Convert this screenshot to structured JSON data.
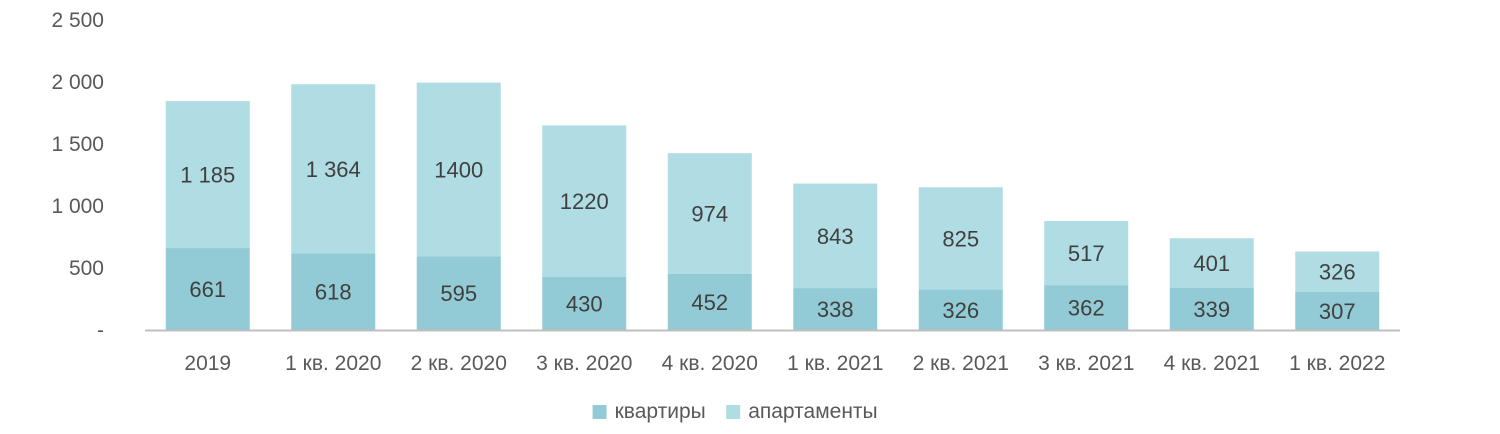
{
  "chart_data": {
    "type": "bar",
    "stacked": true,
    "categories": [
      "2019",
      "1 кв. 2020",
      "2 кв. 2020",
      "3 кв. 2020",
      "4 кв. 2020",
      "1 кв. 2021",
      "2 кв. 2021",
      "3 кв. 2021",
      "4 кв. 2021",
      "1 кв. 2022"
    ],
    "series": [
      {
        "name": "квартиры",
        "values": [
          661,
          618,
          595,
          430,
          452,
          338,
          326,
          362,
          339,
          307
        ],
        "labels": [
          "661",
          "618",
          "595",
          "430",
          "452",
          "338",
          "326",
          "362",
          "339",
          "307"
        ],
        "color": "#92CBD5"
      },
      {
        "name": "апартаменты",
        "values": [
          1185,
          1364,
          1400,
          1220,
          974,
          843,
          825,
          517,
          401,
          326
        ],
        "labels": [
          "1 185",
          "1 364",
          "1400",
          "1220",
          "974",
          "843",
          "825",
          "517",
          "401",
          "326"
        ],
        "color": "#B0DCE3"
      }
    ],
    "ylim": [
      0,
      2500
    ],
    "yticks": [
      0,
      500,
      1000,
      1500,
      2000,
      2500
    ],
    "ytick_labels": [
      "-",
      "500",
      "1 000",
      "1 500",
      "2 000",
      "2 500"
    ],
    "grid": false,
    "legend_position": "bottom-center",
    "axis_color": "#BFBFBF"
  }
}
